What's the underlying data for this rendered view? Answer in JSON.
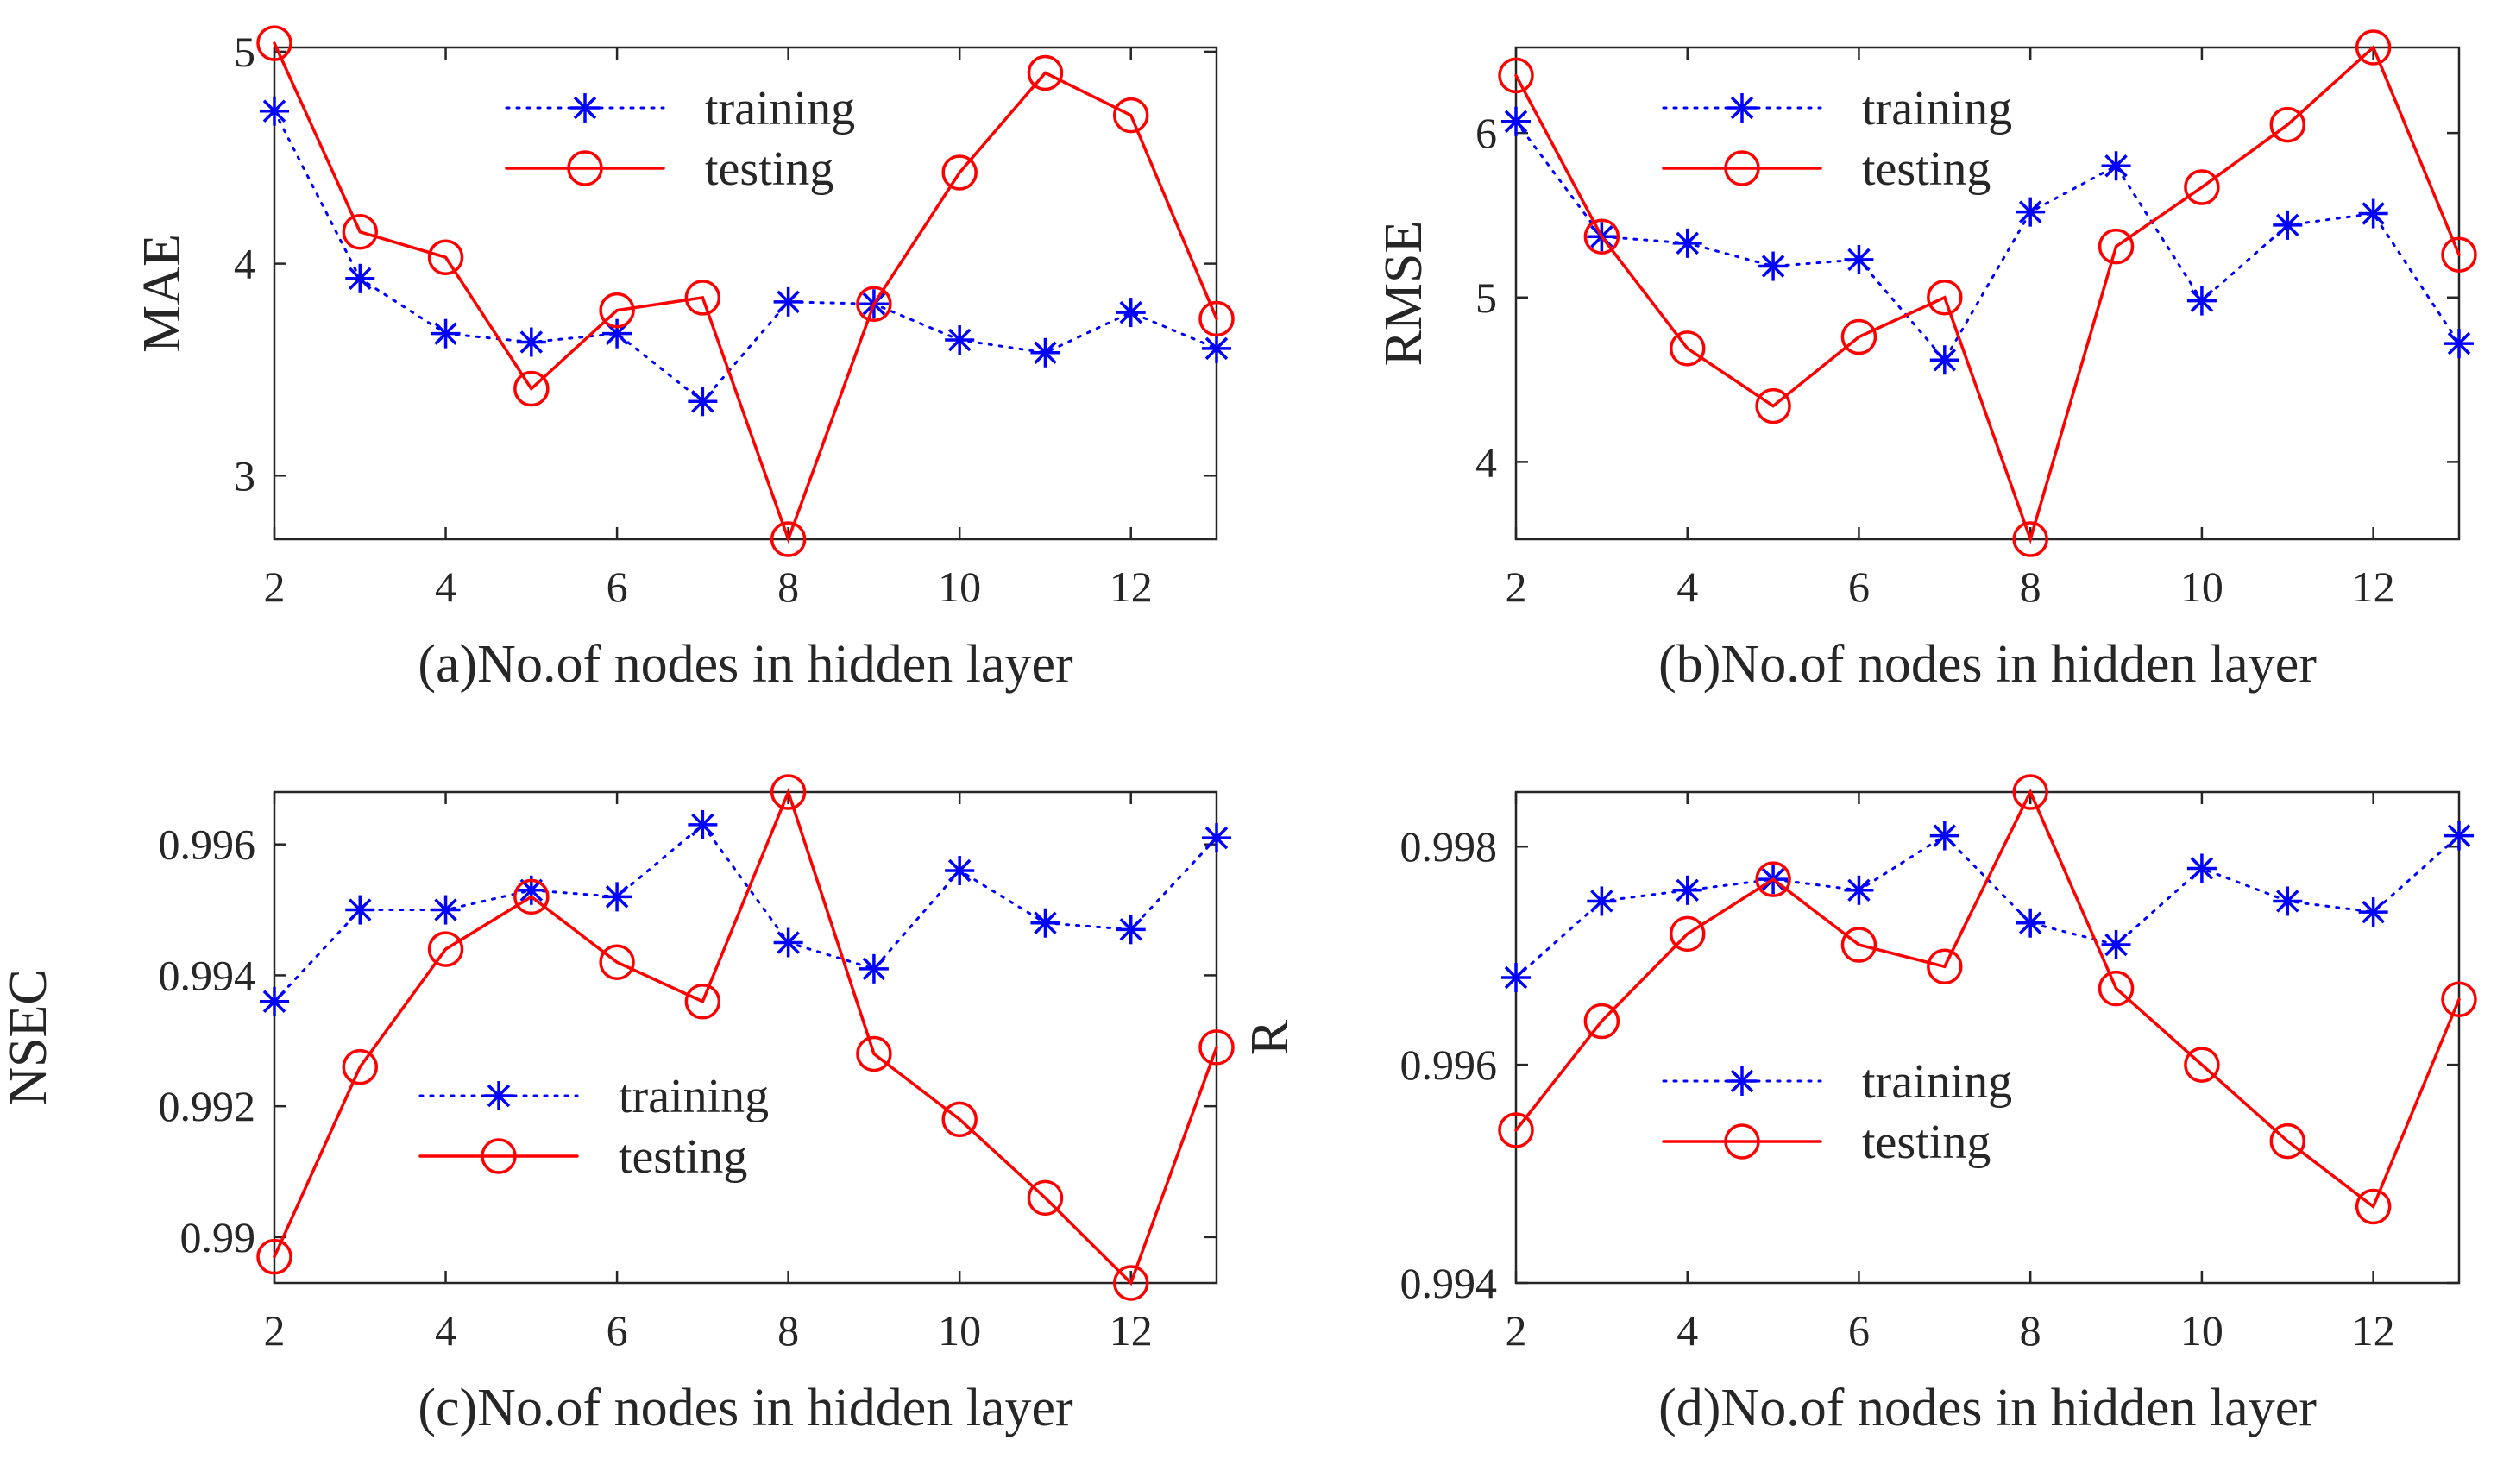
{
  "colors": {
    "training": "#0000ff",
    "testing": "#ff0000",
    "axis": "#262626",
    "background": "#ffffff"
  },
  "chart_data": [
    {
      "id": "a",
      "type": "line",
      "xlabel": "(a)No.of nodes in hidden layer",
      "ylabel": "MAE",
      "xlim": [
        2,
        13
      ],
      "ylim": [
        2.7,
        5.02
      ],
      "xticks": [
        2,
        4,
        6,
        8,
        10,
        12
      ],
      "xtick_labels": [
        "2",
        "4",
        "6",
        "8",
        "10",
        "12"
      ],
      "yticks": [
        3,
        4,
        5
      ],
      "ytick_labels": [
        "3",
        "4",
        "5"
      ],
      "legend": "top-center",
      "x": [
        2,
        3,
        4,
        5,
        6,
        7,
        8,
        9,
        10,
        11,
        12,
        13
      ],
      "series": [
        {
          "name": "training",
          "style": "dotted",
          "marker": "asterisk",
          "color": "#0000ff",
          "values": [
            4.72,
            3.93,
            3.67,
            3.63,
            3.67,
            3.35,
            3.82,
            3.81,
            3.64,
            3.58,
            3.77,
            3.6
          ]
        },
        {
          "name": "testing",
          "style": "solid",
          "marker": "circle",
          "color": "#ff0000",
          "values": [
            5.04,
            4.15,
            4.03,
            3.41,
            3.78,
            3.84,
            2.7,
            3.81,
            4.43,
            4.9,
            4.7,
            3.74
          ]
        }
      ]
    },
    {
      "id": "b",
      "type": "line",
      "xlabel": "(b)No.of nodes in hidden layer",
      "ylabel": "RMSE",
      "xlim": [
        2,
        13
      ],
      "ylim": [
        3.53,
        6.52
      ],
      "xticks": [
        2,
        4,
        6,
        8,
        10,
        12
      ],
      "xtick_labels": [
        "2",
        "4",
        "6",
        "8",
        "10",
        "12"
      ],
      "yticks": [
        4,
        5,
        6
      ],
      "ytick_labels": [
        "4",
        "5",
        "6"
      ],
      "legend": "top-center",
      "x": [
        2,
        3,
        4,
        5,
        6,
        7,
        8,
        9,
        10,
        11,
        12,
        13
      ],
      "series": [
        {
          "name": "training",
          "style": "dotted",
          "marker": "asterisk",
          "color": "#0000ff",
          "values": [
            6.07,
            5.37,
            5.33,
            5.19,
            5.23,
            4.62,
            5.52,
            5.8,
            4.98,
            5.44,
            5.51,
            4.72
          ]
        },
        {
          "name": "testing",
          "style": "solid",
          "marker": "circle",
          "color": "#ff0000",
          "values": [
            6.35,
            5.37,
            4.69,
            4.34,
            4.76,
            5.0,
            3.53,
            5.31,
            5.67,
            6.05,
            6.52,
            5.26
          ]
        }
      ]
    },
    {
      "id": "c",
      "type": "line",
      "xlabel": "(c)No.of nodes in hidden layer",
      "ylabel": "NSEC",
      "xlim": [
        2,
        13
      ],
      "ylim": [
        0.9893,
        0.9968
      ],
      "xticks": [
        2,
        4,
        6,
        8,
        10,
        12
      ],
      "xtick_labels": [
        "2",
        "4",
        "6",
        "8",
        "10",
        "12"
      ],
      "yticks": [
        0.99,
        0.992,
        0.994,
        0.996
      ],
      "ytick_labels": [
        "0.99",
        "0.992",
        "0.994",
        "0.996"
      ],
      "legend": "bottom-left",
      "x": [
        2,
        3,
        4,
        5,
        6,
        7,
        8,
        9,
        10,
        11,
        12,
        13
      ],
      "series": [
        {
          "name": "training",
          "style": "dotted",
          "marker": "asterisk",
          "color": "#0000ff",
          "values": [
            0.9936,
            0.995,
            0.995,
            0.9953,
            0.9952,
            0.9963,
            0.9945,
            0.9941,
            0.9956,
            0.9948,
            0.9947,
            0.9961
          ]
        },
        {
          "name": "testing",
          "style": "solid",
          "marker": "circle",
          "color": "#ff0000",
          "values": [
            0.9897,
            0.9926,
            0.9944,
            0.9952,
            0.9942,
            0.9936,
            0.9968,
            0.9928,
            0.9918,
            0.9906,
            0.9893,
            0.9929
          ]
        }
      ]
    },
    {
      "id": "d",
      "type": "line",
      "xlabel": "(d)No.of nodes in hidden layer",
      "ylabel": "R",
      "xlim": [
        2,
        13
      ],
      "ylim": [
        0.994,
        0.9985
      ],
      "xticks": [
        2,
        4,
        6,
        8,
        10,
        12
      ],
      "xtick_labels": [
        "2",
        "4",
        "6",
        "8",
        "10",
        "12"
      ],
      "yticks": [
        0.994,
        0.996,
        0.998
      ],
      "ytick_labels": [
        "0.994",
        "0.996",
        "0.998"
      ],
      "legend": "center",
      "x": [
        2,
        3,
        4,
        5,
        6,
        7,
        8,
        9,
        10,
        11,
        12,
        13
      ],
      "series": [
        {
          "name": "training",
          "style": "dotted",
          "marker": "asterisk",
          "color": "#0000ff",
          "values": [
            0.9968,
            0.9975,
            0.9976,
            0.9977,
            0.9976,
            0.9981,
            0.9973,
            0.9971,
            0.9978,
            0.9975,
            0.9974,
            0.9981
          ]
        },
        {
          "name": "testing",
          "style": "solid",
          "marker": "circle",
          "color": "#ff0000",
          "values": [
            0.9954,
            0.9964,
            0.9972,
            0.9977,
            0.9971,
            0.9969,
            0.9985,
            0.9967,
            0.996,
            0.9953,
            0.9947,
            0.9966
          ]
        }
      ]
    }
  ]
}
